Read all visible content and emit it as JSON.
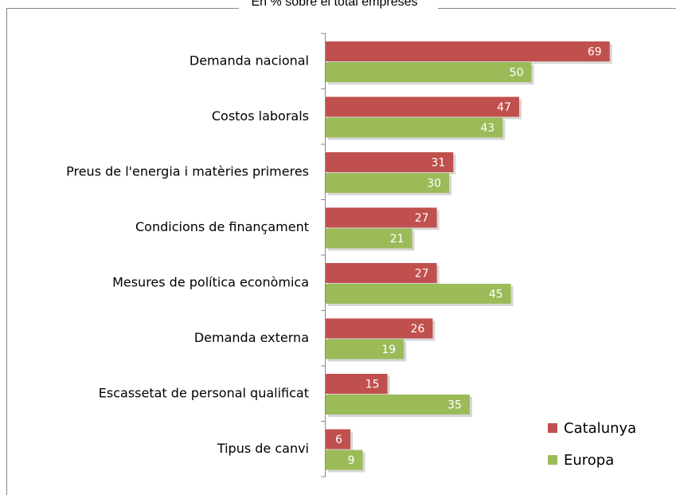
{
  "chart_data": {
    "type": "bar",
    "orientation": "horizontal",
    "subtitle": "En % sobre el total empreses",
    "categories": [
      "Demanda nacional",
      "Costos laborals",
      "Preus de l'energia i matèries primeres",
      "Condicions de finançament",
      "Mesures de política econòmica",
      "Demanda externa",
      "Escassetat de personal qualificat",
      "Tipus de canvi"
    ],
    "series": [
      {
        "name": "Catalunya",
        "color": "#c0504d",
        "values": [
          69,
          47,
          31,
          27,
          27,
          26,
          15,
          6
        ]
      },
      {
        "name": "Europa",
        "color": "#9bbb59",
        "values": [
          50,
          43,
          30,
          21,
          45,
          19,
          35,
          9
        ]
      }
    ]
  }
}
